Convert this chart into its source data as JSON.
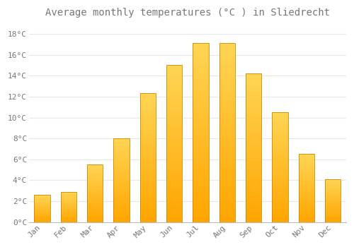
{
  "title": "Average monthly temperatures (°C ) in Sliedrecht",
  "months": [
    "Jan",
    "Feb",
    "Mar",
    "Apr",
    "May",
    "Jun",
    "Jul",
    "Aug",
    "Sep",
    "Oct",
    "Nov",
    "Dec"
  ],
  "temperatures": [
    2.6,
    2.9,
    5.5,
    8.0,
    12.3,
    15.0,
    17.1,
    17.1,
    14.2,
    10.5,
    6.5,
    4.1
  ],
  "bar_color_bottom": "#FFA500",
  "bar_color_top": "#FFD04A",
  "bar_edge_color": "#CC8800",
  "background_color": "#ffffff",
  "grid_color": "#e8e8e8",
  "text_color": "#777777",
  "ylim": [
    0,
    19
  ],
  "yticks": [
    0,
    2,
    4,
    6,
    8,
    10,
    12,
    14,
    16,
    18
  ],
  "title_fontsize": 10,
  "tick_fontsize": 8,
  "bar_width": 0.6,
  "gradient_steps": 100
}
